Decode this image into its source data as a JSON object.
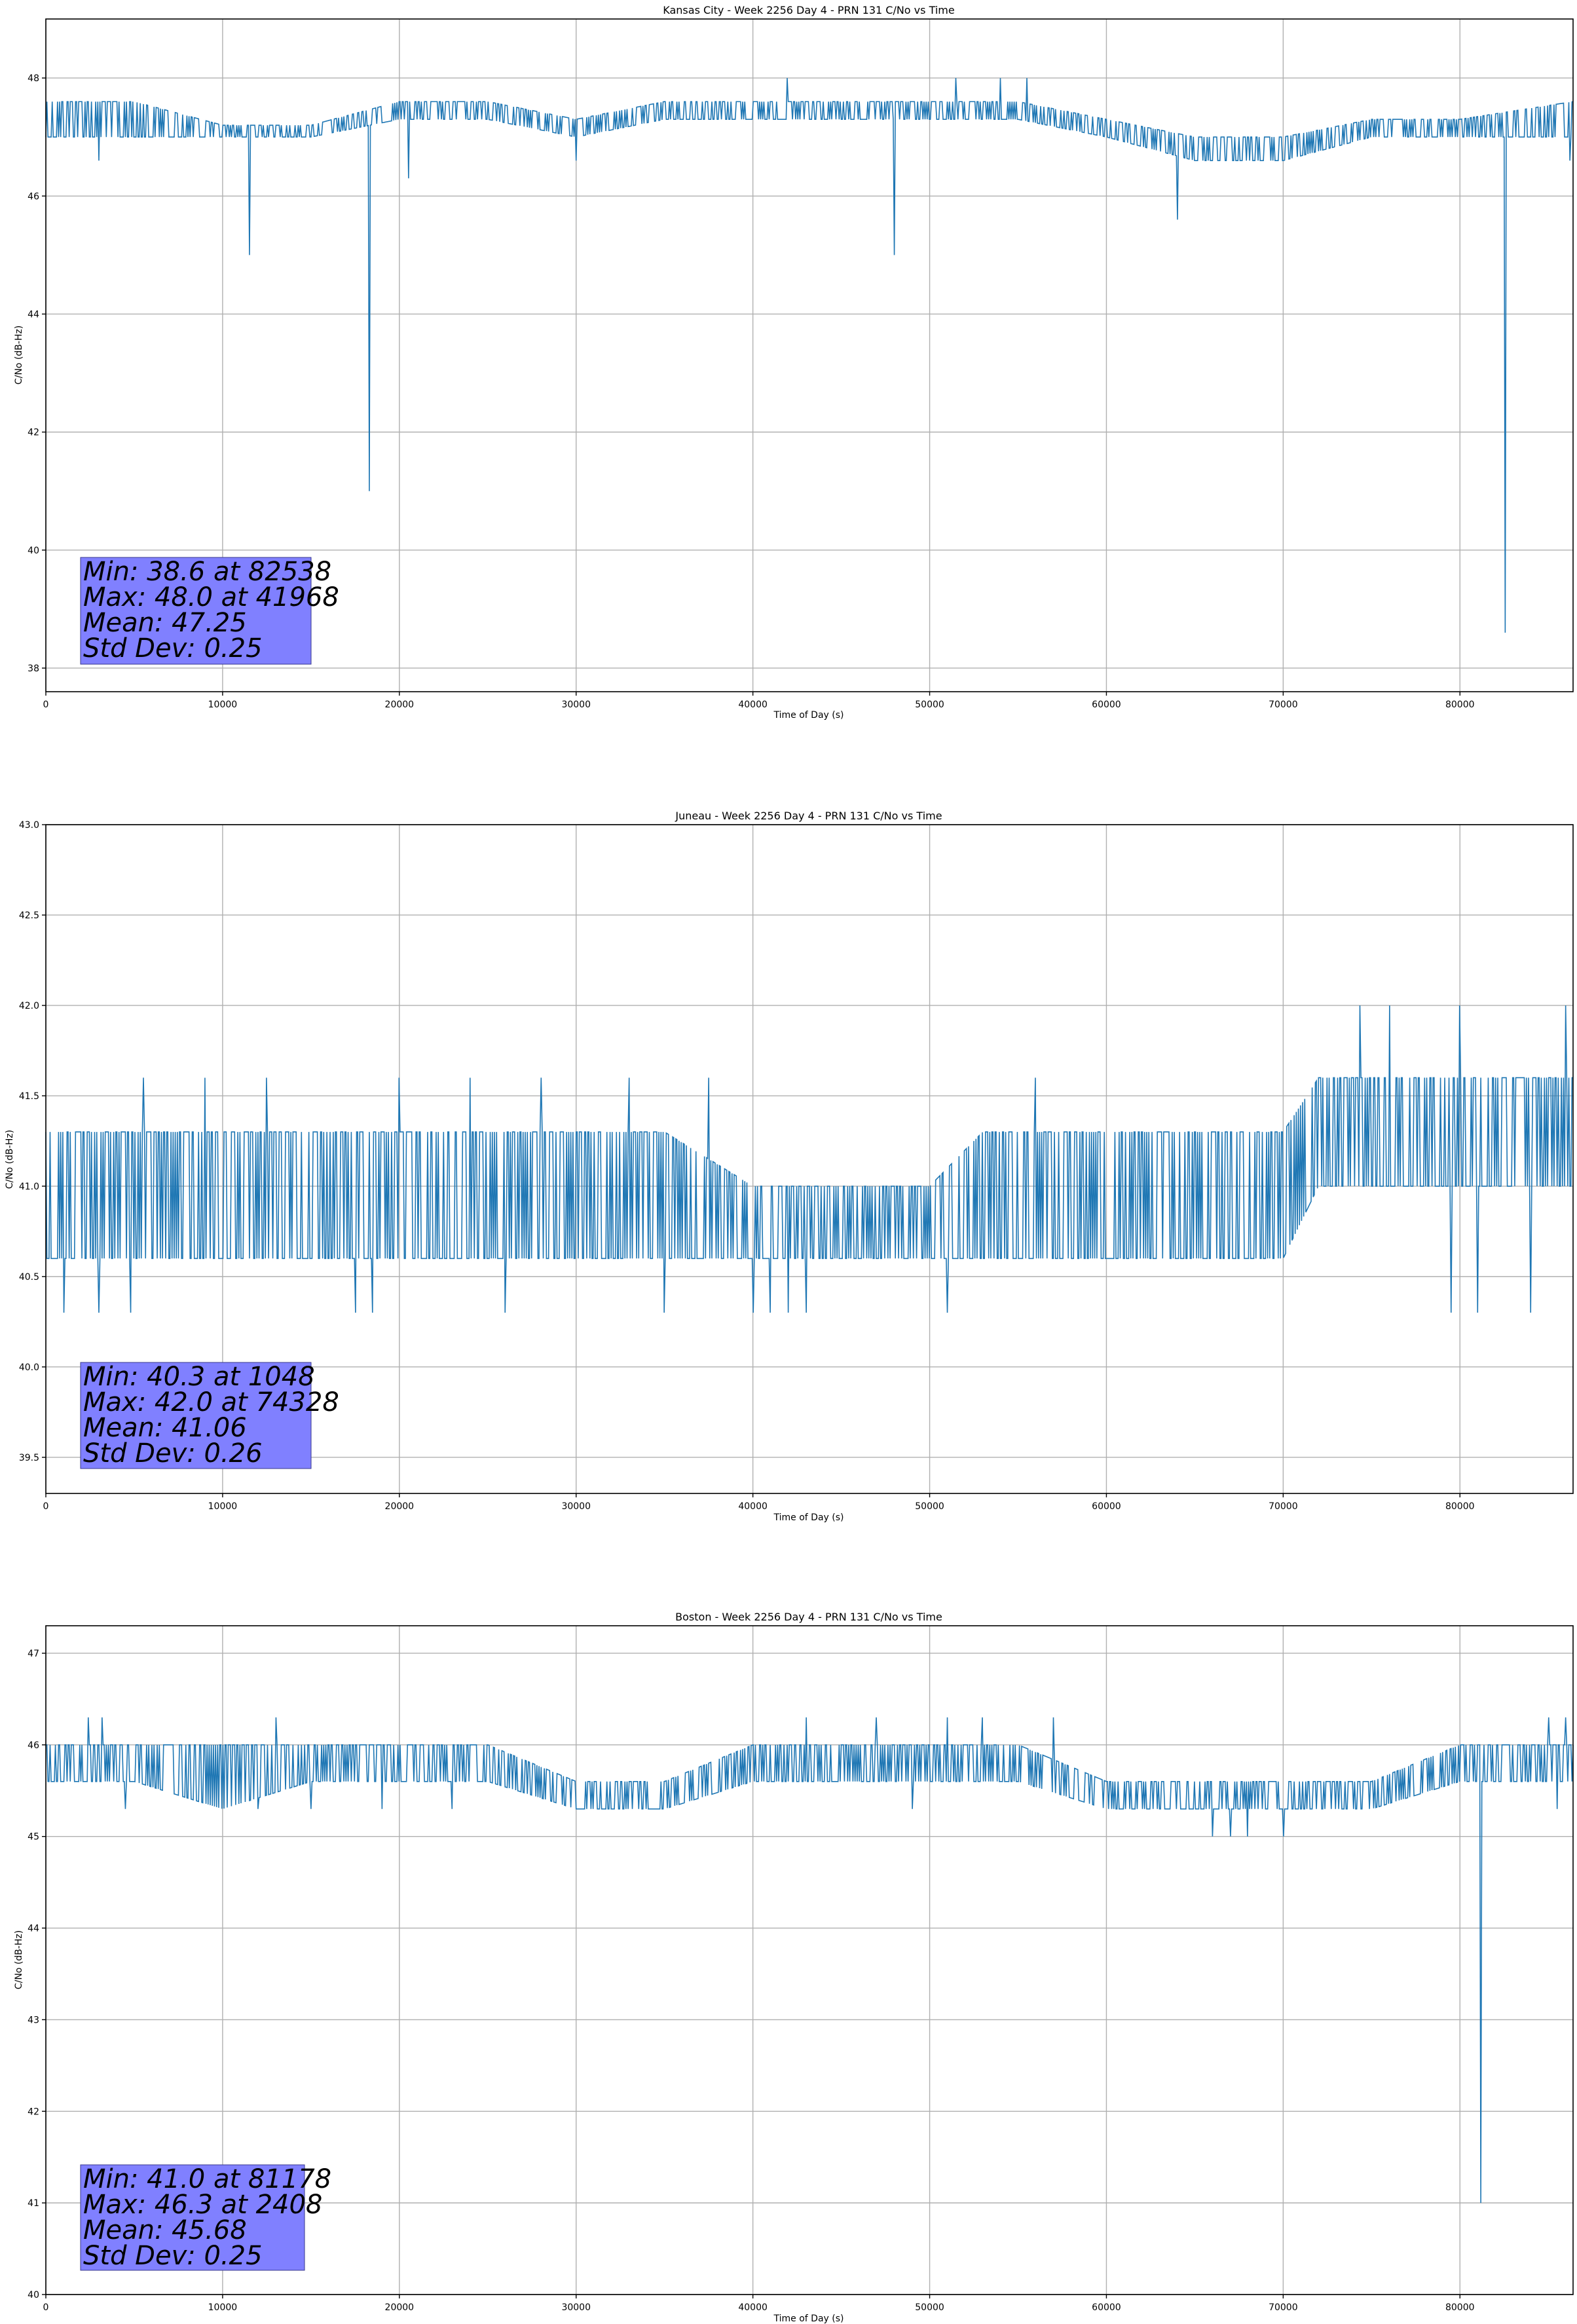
{
  "figure": {
    "background": "#ffffff"
  },
  "chart_data": [
    {
      "type": "line",
      "title": "Kansas City - Week 2256 Day 4 - PRN 131 C/No vs Time",
      "xlabel": "Time of Day (s)",
      "ylabel": "C/No (dB-Hz)",
      "xlim": [
        0,
        86400
      ],
      "ylim": [
        37.6,
        49.0
      ],
      "xticks": [
        0,
        10000,
        20000,
        30000,
        40000,
        50000,
        60000,
        70000,
        80000
      ],
      "yticks": [
        38,
        40,
        42,
        44,
        46,
        48
      ],
      "grid": true,
      "line_color": "#1f77b4",
      "stats": [
        "Min: 38.6 at 82538",
        "Max: 48.0 at 41968",
        "Mean: 47.25",
        "Std Dev: 0.25"
      ],
      "series": [
        {
          "x": [
            0,
            5000,
            10000,
            15000,
            20000,
            25000,
            30000,
            35000,
            40000,
            45000,
            50000,
            55000,
            60000,
            65000,
            70000,
            75000,
            80000,
            86400
          ],
          "upper": [
            47.6,
            47.6,
            47.2,
            47.2,
            47.6,
            47.6,
            47.3,
            47.6,
            47.6,
            47.6,
            47.6,
            47.6,
            47.3,
            47.0,
            47.0,
            47.3,
            47.3,
            47.6
          ],
          "lower": [
            47.0,
            47.0,
            47.0,
            47.0,
            47.3,
            47.3,
            47.0,
            47.3,
            47.3,
            47.3,
            47.3,
            47.3,
            47.0,
            46.6,
            46.6,
            47.0,
            47.0,
            47.0
          ],
          "spikes_down": [
            [
              3000,
              46.6
            ],
            [
              11500,
              45.0
            ],
            [
              18300,
              41.0
            ],
            [
              20500,
              46.3
            ],
            [
              30000,
              46.6
            ],
            [
              48000,
              45.0
            ],
            [
              64000,
              45.6
            ],
            [
              82538,
              38.6
            ],
            [
              86200,
              46.6
            ]
          ],
          "spikes_up": [
            [
              41968,
              48.0
            ],
            [
              51500,
              48.0
            ],
            [
              54000,
              48.0
            ],
            [
              55500,
              48.0
            ]
          ]
        }
      ]
    },
    {
      "type": "line",
      "title": "Juneau - Week 2256 Day 4 - PRN 131 C/No vs Time",
      "xlabel": "Time of Day (s)",
      "ylabel": "C/No (dB-Hz)",
      "xlim": [
        0,
        86400
      ],
      "ylim": [
        39.3,
        43.0
      ],
      "xticks": [
        0,
        10000,
        20000,
        30000,
        40000,
        50000,
        60000,
        70000,
        80000
      ],
      "yticks": [
        39.5,
        40.0,
        40.5,
        41.0,
        41.5,
        42.0,
        42.5,
        43.0
      ],
      "grid": true,
      "line_color": "#1f77b4",
      "stats": [
        "Min: 40.3 at 1048",
        "Max: 42.0 at 74328",
        "Mean: 41.06",
        "Std Dev: 0.26"
      ],
      "series": [
        {
          "x": [
            0,
            5000,
            10000,
            15000,
            20000,
            25000,
            30000,
            35000,
            40000,
            45000,
            50000,
            53000,
            60000,
            65000,
            70000,
            72000,
            75000,
            80000,
            86400
          ],
          "upper": [
            41.3,
            41.3,
            41.3,
            41.3,
            41.3,
            41.3,
            41.3,
            41.3,
            41.0,
            41.0,
            41.0,
            41.3,
            41.3,
            41.3,
            41.3,
            41.6,
            41.6,
            41.6,
            41.6
          ],
          "lower": [
            40.6,
            40.6,
            40.6,
            40.6,
            40.6,
            40.6,
            40.6,
            40.6,
            40.6,
            40.6,
            40.6,
            40.6,
            40.6,
            40.6,
            40.6,
            41.0,
            41.0,
            41.0,
            41.0
          ],
          "spikes_down": [
            [
              1048,
              40.3
            ],
            [
              3000,
              40.3
            ],
            [
              4800,
              40.3
            ],
            [
              17500,
              40.3
            ],
            [
              18500,
              40.3
            ],
            [
              26000,
              40.3
            ],
            [
              35000,
              40.3
            ],
            [
              40000,
              40.3
            ],
            [
              41000,
              40.3
            ],
            [
              42000,
              40.3
            ],
            [
              43000,
              40.3
            ],
            [
              51000,
              40.3
            ],
            [
              79500,
              40.3
            ],
            [
              81000,
              40.3
            ],
            [
              84000,
              40.3
            ]
          ],
          "spikes_up": [
            [
              5500,
              41.6
            ],
            [
              9000,
              41.6
            ],
            [
              12500,
              41.6
            ],
            [
              20000,
              41.6
            ],
            [
              24000,
              41.6
            ],
            [
              28000,
              41.6
            ],
            [
              33000,
              41.6
            ],
            [
              37500,
              41.6
            ],
            [
              56000,
              41.6
            ],
            [
              74328,
              42.0
            ],
            [
              76000,
              42.0
            ],
            [
              80000,
              42.0
            ],
            [
              86000,
              42.0
            ]
          ]
        }
      ]
    },
    {
      "type": "line",
      "title": "Boston - Week 2256 Day 4 - PRN 131 C/No vs Time",
      "xlabel": "Time of Day (s)",
      "ylabel": "C/No (dB-Hz)",
      "xlim": [
        0,
        86400
      ],
      "ylim": [
        40.0,
        47.3
      ],
      "xticks": [
        0,
        10000,
        20000,
        30000,
        40000,
        50000,
        60000,
        70000,
        80000
      ],
      "yticks": [
        40,
        41,
        42,
        43,
        44,
        45,
        46,
        47
      ],
      "grid": true,
      "line_color": "#1f77b4",
      "stats": [
        "Min: 41.0 at 81178",
        "Max: 46.3 at 2408",
        "Mean: 45.68",
        "Std Dev: 0.25"
      ],
      "series": [
        {
          "x": [
            0,
            5000,
            10000,
            15000,
            20000,
            25000,
            30000,
            35000,
            40000,
            45000,
            50000,
            55000,
            60000,
            65000,
            70000,
            75000,
            80000,
            86400
          ],
          "upper": [
            46.0,
            46.0,
            46.0,
            46.0,
            46.0,
            46.0,
            45.6,
            45.6,
            46.0,
            46.0,
            46.0,
            46.0,
            45.6,
            45.6,
            45.6,
            45.6,
            46.0,
            46.0
          ],
          "lower": [
            45.6,
            45.6,
            45.3,
            45.6,
            45.6,
            45.6,
            45.3,
            45.3,
            45.6,
            45.6,
            45.6,
            45.6,
            45.3,
            45.3,
            45.3,
            45.3,
            45.6,
            45.6
          ],
          "spikes_down": [
            [
              4500,
              45.3
            ],
            [
              12000,
              45.3
            ],
            [
              15000,
              45.3
            ],
            [
              19000,
              45.3
            ],
            [
              23000,
              45.3
            ],
            [
              49000,
              45.3
            ],
            [
              66000,
              45.0
            ],
            [
              67000,
              45.0
            ],
            [
              68000,
              45.0
            ],
            [
              70000,
              45.0
            ],
            [
              81178,
              41.0
            ],
            [
              85500,
              45.3
            ]
          ],
          "spikes_up": [
            [
              2408,
              46.3
            ],
            [
              3200,
              46.3
            ],
            [
              13000,
              46.3
            ],
            [
              43000,
              46.3
            ],
            [
              47000,
              46.3
            ],
            [
              51000,
              46.3
            ],
            [
              53000,
              46.3
            ],
            [
              57000,
              46.3
            ],
            [
              85000,
              46.3
            ],
            [
              86000,
              46.3
            ]
          ]
        }
      ]
    }
  ]
}
